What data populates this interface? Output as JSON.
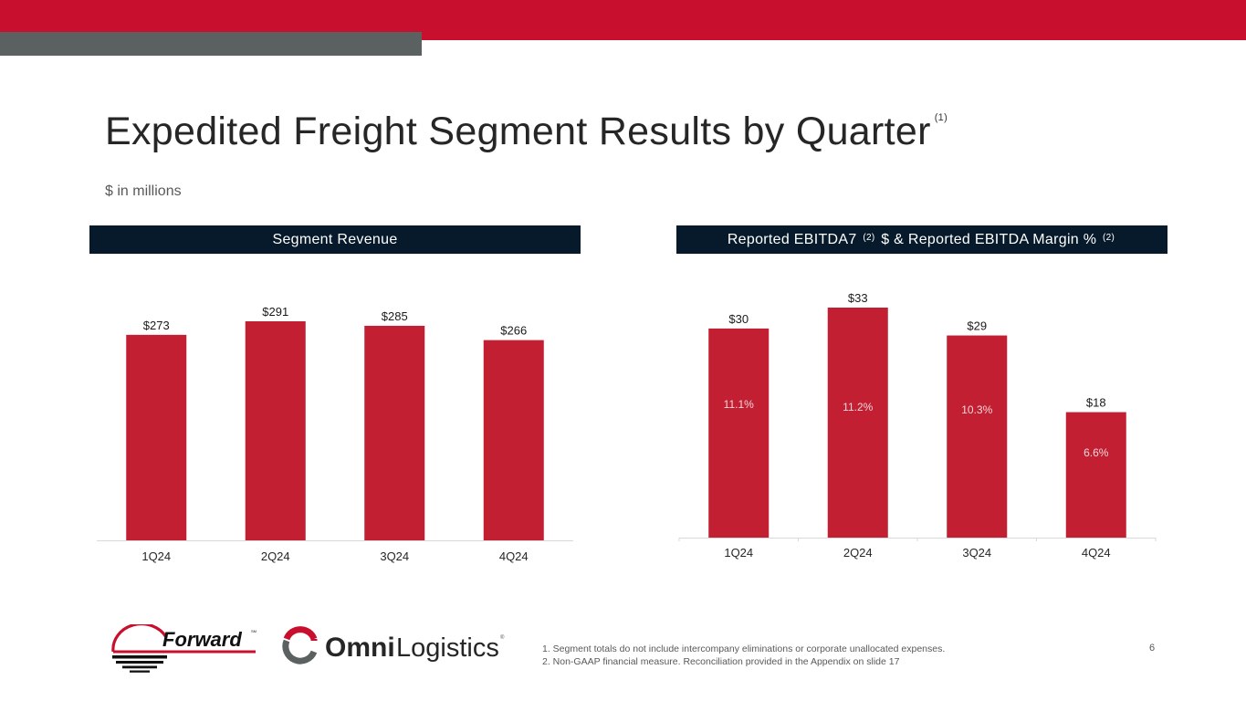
{
  "header": {
    "title": "Expedited Freight Segment Results by Quarter",
    "title_footnote": "(1)",
    "subtitle": "$ in millions"
  },
  "panels": {
    "left": {
      "title": "Segment Revenue"
    },
    "right": {
      "title_part1": "Reported EBITDA7",
      "title_sup1": "(2)",
      "title_part2": "$ & Reported EBITDA Margin %",
      "title_sup2": "(2)"
    }
  },
  "colors": {
    "brand_red": "#c8102e",
    "bar_red": "#c21f32",
    "header_navy": "#061a2b",
    "band_gray": "#5a6160"
  },
  "chart_data": [
    {
      "type": "bar",
      "title": "Segment Revenue",
      "categories": [
        "1Q24",
        "2Q24",
        "3Q24",
        "4Q24"
      ],
      "values": [
        273,
        291,
        285,
        266
      ],
      "data_labels": [
        "$273",
        "$291",
        "$285",
        "$266"
      ],
      "xlabel": "",
      "ylabel": "",
      "ylim": [
        0,
        330
      ],
      "grid": false,
      "legend": "none"
    },
    {
      "type": "bar",
      "title": "Reported EBITDA7 (2) $ & Reported EBITDA Margin % (2)",
      "categories": [
        "1Q24",
        "2Q24",
        "3Q24",
        "4Q24"
      ],
      "series": [
        {
          "name": "Reported EBITDA $",
          "values": [
            30,
            33,
            29,
            18
          ],
          "data_labels": [
            "$30",
            "$33",
            "$29",
            "$18"
          ]
        },
        {
          "name": "Reported EBITDA Margin %",
          "values": [
            11.1,
            11.2,
            10.3,
            6.6
          ],
          "data_labels": [
            "11.1%",
            "11.2%",
            "10.3%",
            "6.6%"
          ]
        }
      ],
      "xlabel": "",
      "ylabel": "",
      "ylim": [
        0,
        35
      ],
      "grid": false,
      "legend": "none"
    }
  ],
  "logos": {
    "forward": {
      "name": "Forward",
      "mark": "SM"
    },
    "omni": {
      "bold": "Omni",
      "light": "Logistics",
      "mark": "®"
    }
  },
  "footnotes": [
    "1.   Segment totals do not include intercompany eliminations or corporate unallocated expenses.",
    "2.   Non-GAAP financial measure.  Reconciliation provided in the Appendix on slide 17"
  ],
  "page_number": "6"
}
